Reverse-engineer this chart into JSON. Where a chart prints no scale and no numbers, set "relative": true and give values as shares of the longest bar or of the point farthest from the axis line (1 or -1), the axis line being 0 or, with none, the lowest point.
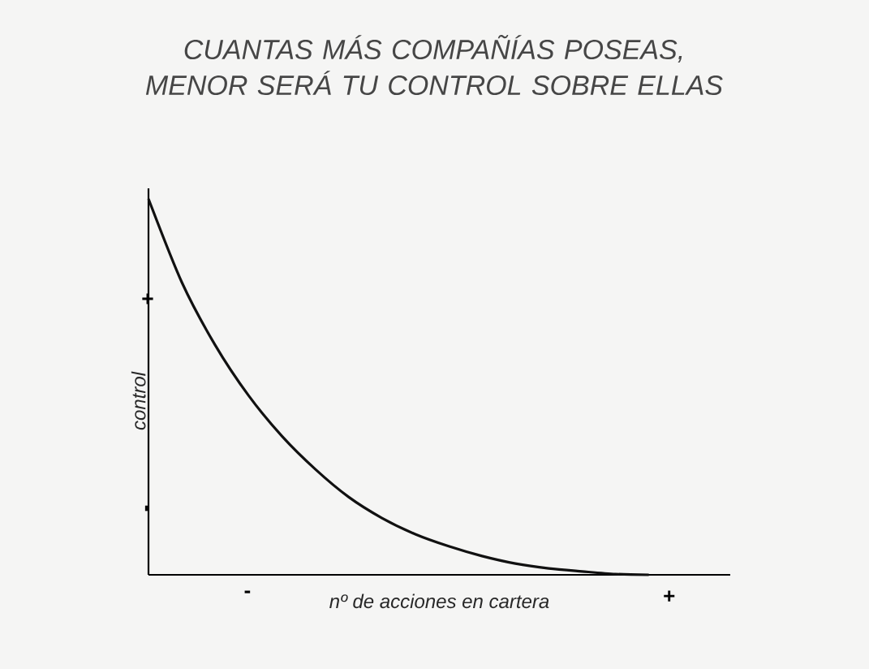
{
  "chart_data": {
    "type": "line",
    "title": "CUANTAS MÁS COMPAÑÍAS POSEAS,\nMENOR SERÁ TU CONTROL SOBRE ELLAS",
    "xlabel": "nº de acciones en cartera",
    "ylabel": "control",
    "relative": true,
    "categories": [
      null,
      null,
      null,
      null,
      null,
      null,
      null,
      null,
      null,
      null,
      null,
      null,
      null,
      null,
      null,
      null
    ],
    "series": [
      {
        "color": "#111111",
        "values": [
          1,
          0.778,
          0.611,
          0.477,
          0.369,
          0.281,
          0.207,
          0.151,
          0.108,
          0.076,
          0.05,
          0.03,
          0.017,
          0.009,
          0.002,
          0
        ]
      }
    ],
    "annotations": [
      "-",
      "+",
      "+",
      "-"
    ],
    "grid": false,
    "marker": "none",
    "line_style": "solid"
  }
}
